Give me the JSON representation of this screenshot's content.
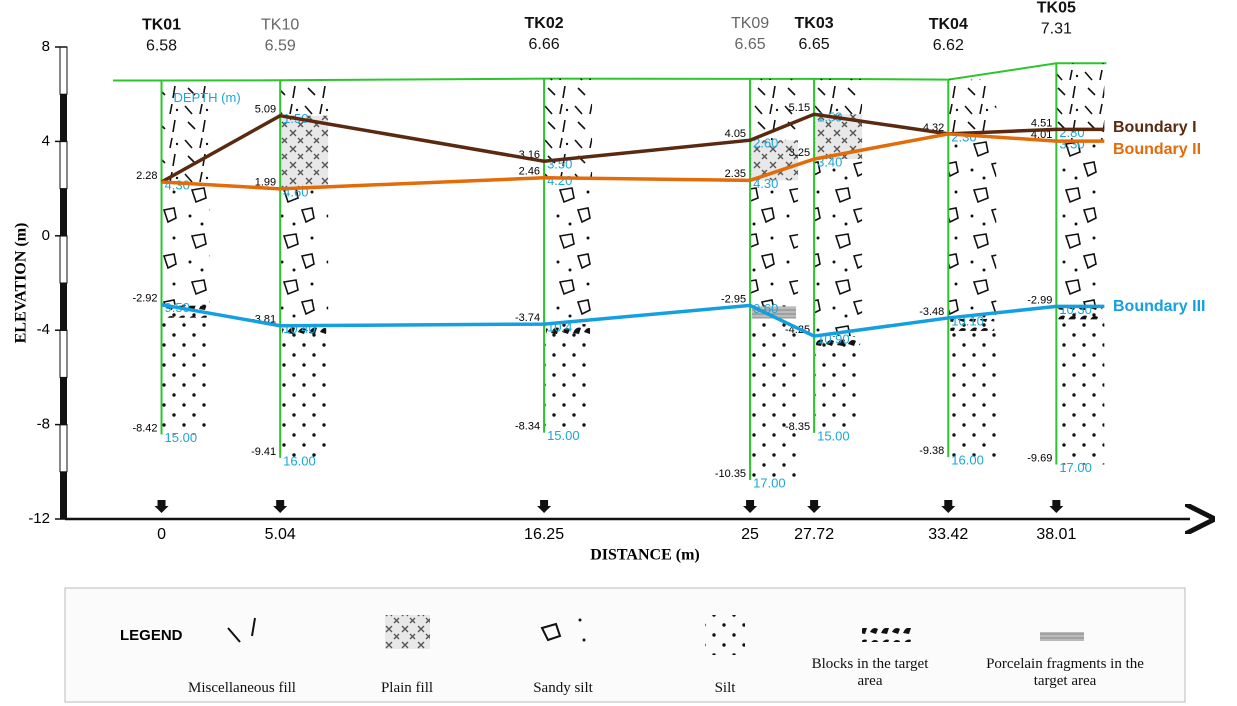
{
  "axes": {
    "y_label": "ELEVATION (m)",
    "x_label": "DISTANCE (m)",
    "ylim": [
      -12,
      8
    ],
    "yticks": [
      8,
      4,
      0,
      -4,
      -8,
      -12
    ],
    "xlim": [
      -4.1,
      43.9
    ]
  },
  "depth_header": "DEPTH (m)",
  "boreholes": [
    {
      "name": "TK01",
      "elevation": 6.58,
      "distance": 0,
      "layers": [
        {
          "elevation": 2.28,
          "depth": "4.30"
        },
        {
          "elevation": -2.92,
          "depth": "9.50"
        },
        {
          "elevation": -8.42,
          "depth": "15.00"
        }
      ]
    },
    {
      "name": "TK10",
      "elevation": 6.59,
      "distance": 5.04,
      "layers": [
        {
          "elevation": 5.09,
          "depth": "1.50"
        },
        {
          "elevation": 1.99,
          "depth": "4.60"
        },
        {
          "elevation": -3.81,
          "depth": "10.40"
        },
        {
          "elevation": -9.41,
          "depth": "16.00"
        }
      ]
    },
    {
      "name": "TK02",
      "elevation": 6.66,
      "distance": 16.25,
      "layers": [
        {
          "elevation": 3.16,
          "depth": "3.50"
        },
        {
          "elevation": 2.46,
          "depth": "4.20"
        },
        {
          "elevation": -3.74,
          "depth": "10.4"
        },
        {
          "elevation": -8.34,
          "depth": "15.00"
        }
      ]
    },
    {
      "name": "TK09",
      "elevation": 6.65,
      "distance": 25,
      "layers": [
        {
          "elevation": 4.05,
          "depth": "2.60"
        },
        {
          "elevation": 2.35,
          "depth": "4.30"
        },
        {
          "elevation": -2.95,
          "depth": "9.60"
        },
        {
          "elevation": -10.35,
          "depth": "17.00"
        }
      ]
    },
    {
      "name": "TK03",
      "elevation": 6.65,
      "distance": 27.72,
      "layers": [
        {
          "elevation": 5.15,
          "depth": "1.50"
        },
        {
          "elevation": 3.25,
          "depth": "3.40"
        },
        {
          "elevation": -4.25,
          "depth": "10.90"
        },
        {
          "elevation": -8.35,
          "depth": "15.00"
        }
      ]
    },
    {
      "name": "TK04",
      "elevation": 6.62,
      "distance": 33.42,
      "layers": [
        {
          "elevation": 4.32,
          "depth": "2.30"
        },
        {
          "elevation": -3.48,
          "depth": "10.10"
        },
        {
          "elevation": -9.38,
          "depth": "16.00"
        }
      ]
    },
    {
      "name": "TK05",
      "elevation": 7.31,
      "distance": 38.01,
      "layers": [
        {
          "elevation": 4.51,
          "depth": "2.80"
        },
        {
          "elevation": 4.01,
          "depth": "3.30"
        },
        {
          "elevation": -2.99,
          "depth": "10.30"
        },
        {
          "elevation": -9.69,
          "depth": "17.00"
        }
      ]
    }
  ],
  "boundaries": [
    {
      "name": "Boundary I",
      "color": "#5a2a10",
      "values": [
        2.28,
        5.09,
        3.16,
        4.05,
        5.15,
        4.32,
        4.51
      ]
    },
    {
      "name": "Boundary II",
      "color": "#e36c0a",
      "values": [
        2.28,
        1.99,
        2.46,
        2.35,
        3.25,
        4.32,
        4.01
      ]
    },
    {
      "name": "Boundary III",
      "color": "#14a0e0",
      "values": [
        -2.92,
        -3.81,
        -3.74,
        -2.95,
        -4.25,
        -3.48,
        -2.99
      ]
    }
  ],
  "legend": {
    "title": "LEGEND",
    "items": [
      "Miscellaneous fill",
      "Plain fill",
      "Sandy silt",
      "Silt",
      "Blocks in the target area",
      "Porcelain fragments in the target area"
    ]
  }
}
